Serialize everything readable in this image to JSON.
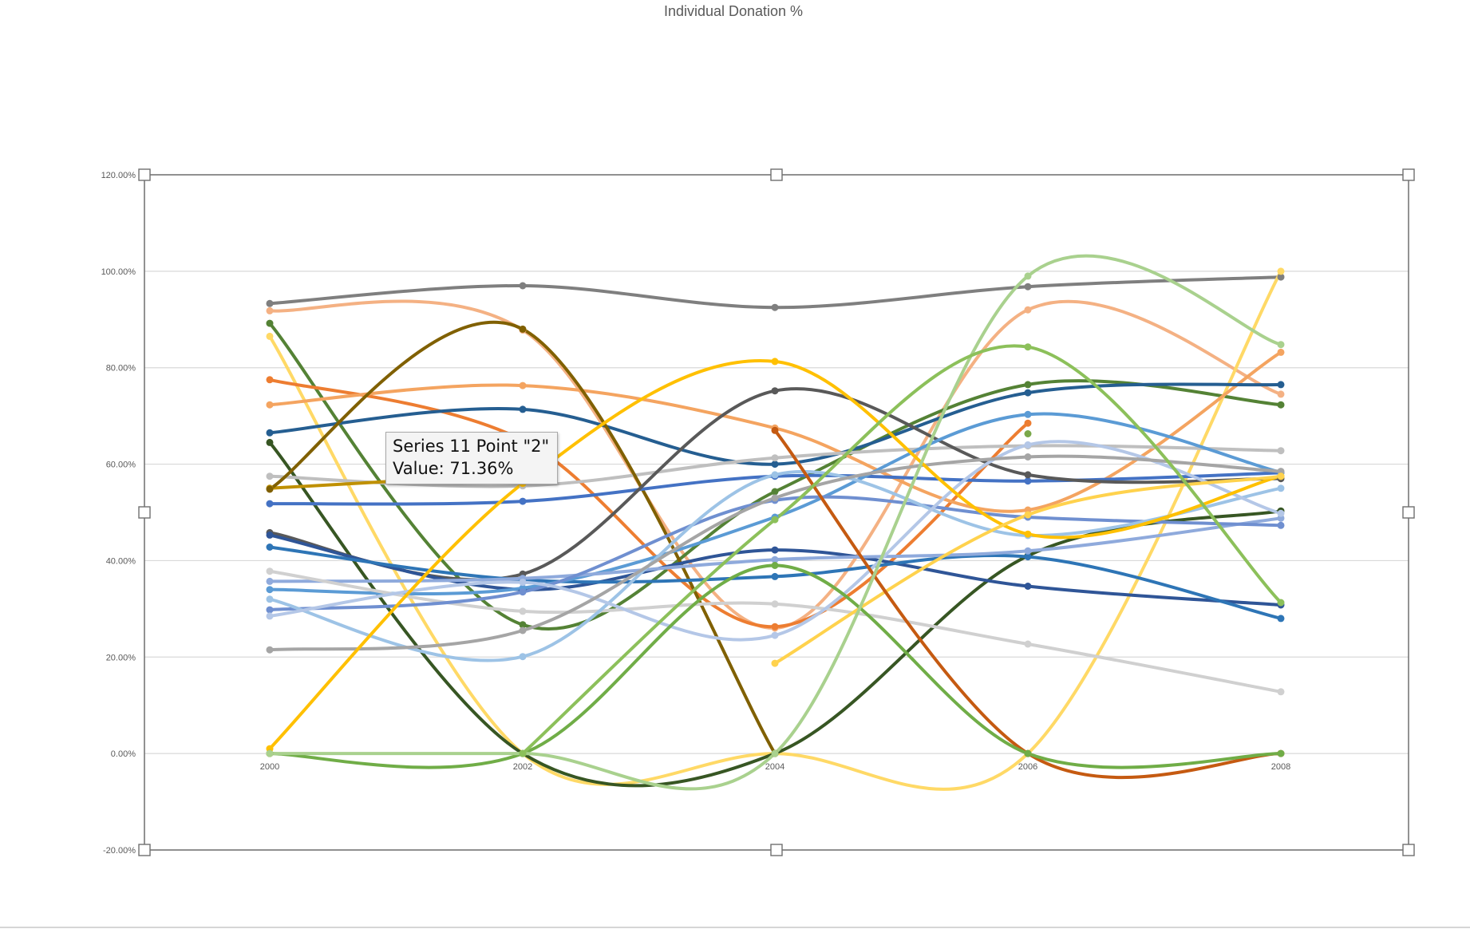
{
  "chart_data": {
    "type": "line",
    "title": "Individual Donation %",
    "x": [
      "2000",
      "2002",
      "2004",
      "2006",
      "2008"
    ],
    "y_ticks": [
      "120.00%",
      "100.00%",
      "80.00%",
      "60.00%",
      "40.00%",
      "20.00%",
      "0.00%",
      "-20.00%"
    ],
    "ylim": [
      -20,
      120
    ],
    "grid": true,
    "smoothed": true,
    "series": [
      {
        "color": "#7f7f7f",
        "values": [
          93.3,
          97.0,
          92.5,
          96.8,
          98.8
        ]
      },
      {
        "color": "#f4b183",
        "values": [
          91.8,
          87.8,
          26.0,
          92.0,
          74.5
        ]
      },
      {
        "color": "#548235",
        "values": [
          89.2,
          26.7,
          54.3,
          76.5,
          72.3
        ]
      },
      {
        "color": "#ffd966",
        "values": [
          86.5,
          0.0,
          0.0,
          0.0,
          100.0
        ]
      },
      {
        "color": "#ed7d31",
        "values": [
          77.5,
          65.0,
          26.3,
          68.5,
          null
        ]
      },
      {
        "color": "#f4a460",
        "values": [
          72.3,
          76.3,
          67.5,
          50.5,
          83.2
        ]
      },
      {
        "color": "#255e91",
        "values": [
          66.5,
          71.36,
          60.0,
          74.8,
          76.5
        ]
      },
      {
        "color": "#375623",
        "values": [
          64.5,
          0.0,
          0.0,
          41.0,
          50.3
        ]
      },
      {
        "color": "#bfbfbf",
        "values": [
          57.5,
          55.5,
          61.3,
          63.8,
          62.8
        ]
      },
      {
        "color": "#bf9000",
        "values": [
          55.0,
          58.0,
          null,
          null,
          null
        ]
      },
      {
        "color": "#806000",
        "values": [
          54.8,
          88.0,
          0.0,
          null,
          null
        ]
      },
      {
        "color": "#4472c4",
        "values": [
          51.8,
          52.3,
          57.5,
          56.5,
          58.2
        ]
      },
      {
        "color": "#595959",
        "values": [
          45.8,
          37.2,
          75.2,
          57.8,
          57.0
        ]
      },
      {
        "color": "#2f5597",
        "values": [
          45.3,
          34.0,
          42.2,
          34.7,
          30.8
        ]
      },
      {
        "color": "#2e75b6",
        "values": [
          42.8,
          36.0,
          36.7,
          40.8,
          28.0
        ]
      },
      {
        "color": "#5b9bd5",
        "values": [
          34.0,
          34.3,
          49.0,
          70.3,
          58.3
        ]
      },
      {
        "color": "#8faadc",
        "values": [
          35.7,
          36.3,
          40.2,
          42.0,
          48.8
        ]
      },
      {
        "color": "#d0d0d0",
        "values": [
          37.8,
          29.5,
          31.0,
          22.7,
          12.8
        ]
      },
      {
        "color": "#6f8fd0",
        "values": [
          29.8,
          33.5,
          52.5,
          49.0,
          47.3
        ]
      },
      {
        "color": "#9dc3e6",
        "values": [
          32.0,
          20.1,
          57.8,
          45.2,
          55.0
        ]
      },
      {
        "color": "#b4c7e7",
        "values": [
          28.5,
          35.5,
          24.5,
          64.0,
          49.8
        ]
      },
      {
        "color": "#a5a5a5",
        "values": [
          21.5,
          25.5,
          53.0,
          61.5,
          58.5
        ]
      },
      {
        "color": "#ffc000",
        "values": [
          1.0,
          56.0,
          81.3,
          45.5,
          57.5
        ]
      },
      {
        "color": "#ffd24d",
        "values": [
          null,
          null,
          18.7,
          49.5,
          57.5
        ]
      },
      {
        "color": "#c55a11",
        "values": [
          0.0,
          null,
          67.0,
          0.0,
          0.0
        ]
      },
      {
        "color": "#70ad47",
        "values": [
          0.0,
          0.0,
          39.0,
          0.0,
          0.0
        ]
      },
      {
        "color": "#a9d18e",
        "values": [
          0.0,
          0.0,
          0.0,
          99.0,
          84.8
        ]
      },
      {
        "color": "#8cc05a",
        "values": [
          null,
          0.0,
          48.5,
          84.3,
          31.3
        ]
      },
      {
        "color": "#7aa84a",
        "values": [
          null,
          null,
          null,
          66.3,
          null
        ]
      }
    ]
  },
  "tooltip": {
    "line1": "Series 11 Point \"2\"",
    "line2": "Value: 71.36%"
  }
}
